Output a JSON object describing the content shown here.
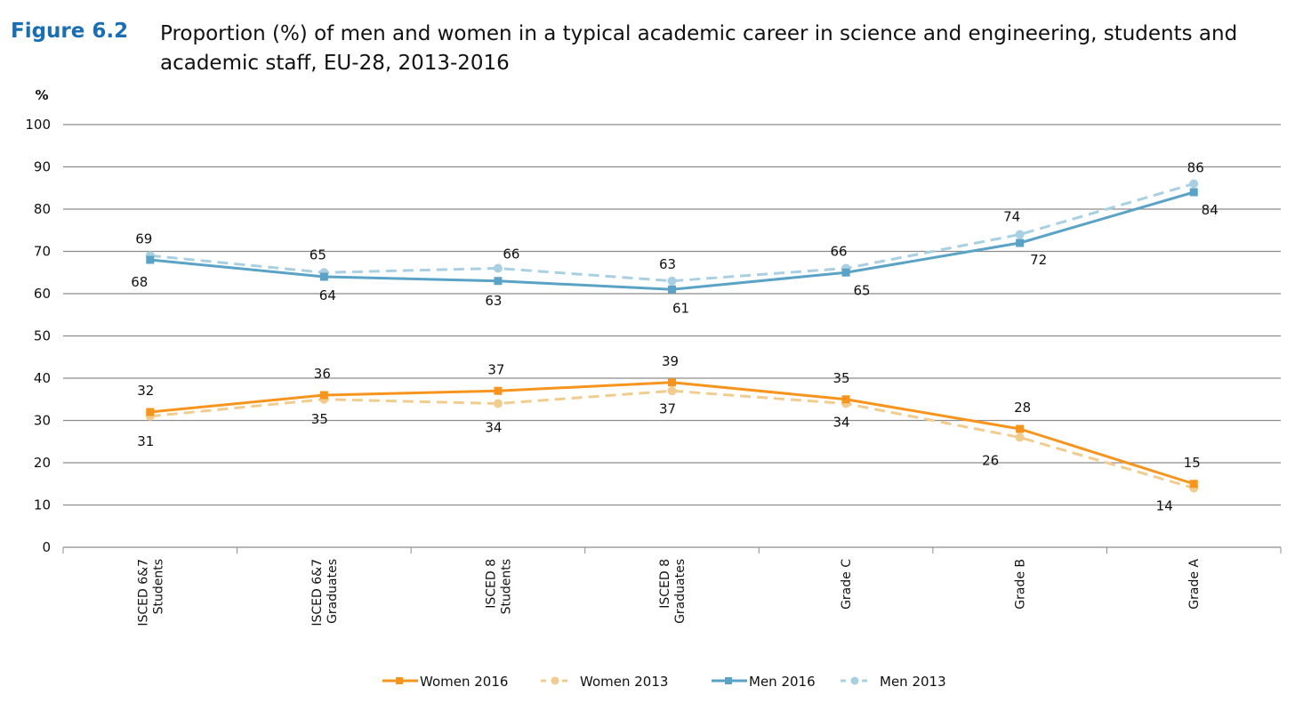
{
  "figure": {
    "label": "Figure 6.2",
    "title": "Proportion (%) of men and women in a typical academic career in science and engineering, students and academic staff, EU-28, 2013-2016"
  },
  "chart_data": {
    "type": "line",
    "title": "Proportion (%) of men and women in a typical academic career in science and engineering, students and academic staff, EU-28, 2013-2016",
    "xlabel": "",
    "ylabel": "%",
    "ylim": [
      0,
      100
    ],
    "yticks": [
      0,
      10,
      20,
      30,
      40,
      50,
      60,
      70,
      80,
      90,
      100
    ],
    "grid": true,
    "legend_position": "bottom",
    "categories": [
      [
        "ISCED 6&7",
        "Students"
      ],
      [
        "ISCED 6&7",
        "Graduates"
      ],
      [
        "ISCED 8",
        "Students"
      ],
      [
        "ISCED 8",
        "Graduates"
      ],
      [
        "Grade C"
      ],
      [
        "Grade B"
      ],
      [
        "Grade A"
      ]
    ],
    "series": [
      {
        "name": "Women 2016",
        "values": [
          32,
          36,
          37,
          39,
          35,
          28,
          15
        ],
        "color": "#f7941d",
        "style": "solid",
        "marker": "square"
      },
      {
        "name": "Women 2013",
        "values": [
          31,
          35,
          34,
          37,
          34,
          26,
          14
        ],
        "color": "#f0cc8f",
        "style": "dashed",
        "marker": "circle"
      },
      {
        "name": "Men 2016",
        "values": [
          68,
          64,
          63,
          61,
          65,
          72,
          84
        ],
        "color": "#5ba3c6",
        "style": "solid",
        "marker": "square"
      },
      {
        "name": "Men 2013",
        "values": [
          69,
          65,
          66,
          63,
          66,
          74,
          86
        ],
        "color": "#a9cfe3",
        "style": "dashed",
        "marker": "circle"
      }
    ]
  }
}
